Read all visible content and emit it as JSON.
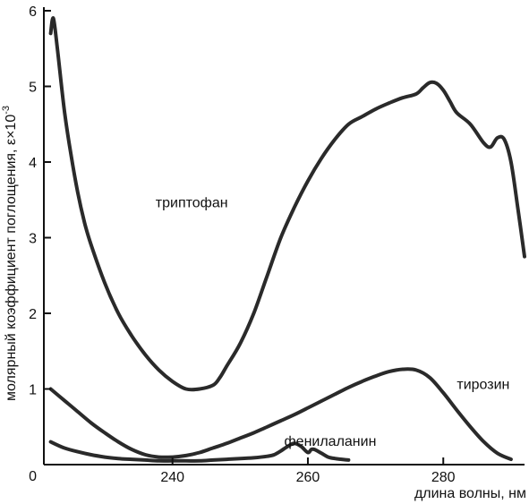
{
  "chart_data": {
    "type": "line",
    "xlabel": "длина волны, нм",
    "ylabel": "молярный коэффициент поглощения, ε×10",
    "ylabel_sup": "-3",
    "xlim": [
      221,
      292
    ],
    "ylim": [
      0,
      6
    ],
    "x_ticks": [
      240,
      260,
      280
    ],
    "y_ticks": [
      0,
      1,
      2,
      3,
      4,
      5,
      6
    ],
    "grid": false,
    "legend": "inline labels",
    "colors": {
      "line": "#2a2a2a",
      "axis": "#111111"
    },
    "series": [
      {
        "name": "триптофан",
        "label_at": [
          237.5,
          3.4
        ],
        "x": [
          222,
          222.4,
          223,
          224,
          225,
          226,
          227,
          228,
          230,
          232,
          234,
          236,
          238,
          240,
          242,
          244,
          246,
          247,
          248,
          250,
          252,
          254,
          256,
          258,
          260,
          262,
          264,
          266,
          268,
          270,
          272,
          274,
          276,
          277,
          278,
          279,
          280,
          281,
          282,
          284,
          286,
          287,
          288,
          289,
          290,
          291,
          292
        ],
        "y": [
          5.7,
          5.9,
          5.5,
          4.7,
          4.1,
          3.6,
          3.2,
          2.9,
          2.4,
          2.0,
          1.7,
          1.45,
          1.25,
          1.1,
          1.0,
          1.0,
          1.05,
          1.15,
          1.3,
          1.6,
          2.0,
          2.5,
          3.0,
          3.4,
          3.75,
          4.05,
          4.3,
          4.5,
          4.6,
          4.7,
          4.78,
          4.85,
          4.9,
          4.98,
          5.05,
          5.04,
          4.95,
          4.8,
          4.65,
          4.5,
          4.25,
          4.2,
          4.32,
          4.3,
          4.0,
          3.4,
          2.75
        ]
      },
      {
        "name": "тирозин",
        "label_at": [
          282,
          1.0
        ],
        "x": [
          222,
          224,
          226,
          228,
          230,
          232,
          234,
          236,
          238,
          240,
          242,
          244,
          246,
          248,
          250,
          252,
          254,
          256,
          258,
          260,
          262,
          264,
          266,
          268,
          270,
          272,
          274,
          276,
          278,
          280,
          282,
          284,
          286,
          288,
          290
        ],
        "y": [
          1.0,
          0.85,
          0.7,
          0.55,
          0.42,
          0.3,
          0.2,
          0.13,
          0.1,
          0.1,
          0.12,
          0.16,
          0.22,
          0.28,
          0.35,
          0.42,
          0.5,
          0.58,
          0.66,
          0.75,
          0.84,
          0.93,
          1.02,
          1.1,
          1.17,
          1.23,
          1.26,
          1.25,
          1.15,
          0.95,
          0.72,
          0.5,
          0.3,
          0.15,
          0.07
        ]
      },
      {
        "name": "фенилаланин",
        "label_at": [
          256.5,
          0.25
        ],
        "x": [
          222,
          224,
          226,
          228,
          230,
          232,
          234,
          236,
          238,
          240,
          242,
          244,
          246,
          248,
          250,
          252,
          254,
          255,
          256,
          257,
          258,
          259,
          260,
          260.5,
          261,
          262,
          263,
          264,
          265,
          266
        ],
        "y": [
          0.3,
          0.22,
          0.17,
          0.13,
          0.1,
          0.08,
          0.07,
          0.06,
          0.05,
          0.05,
          0.05,
          0.05,
          0.06,
          0.07,
          0.08,
          0.09,
          0.11,
          0.13,
          0.18,
          0.24,
          0.28,
          0.24,
          0.16,
          0.2,
          0.2,
          0.15,
          0.1,
          0.08,
          0.07,
          0.06
        ]
      }
    ]
  }
}
